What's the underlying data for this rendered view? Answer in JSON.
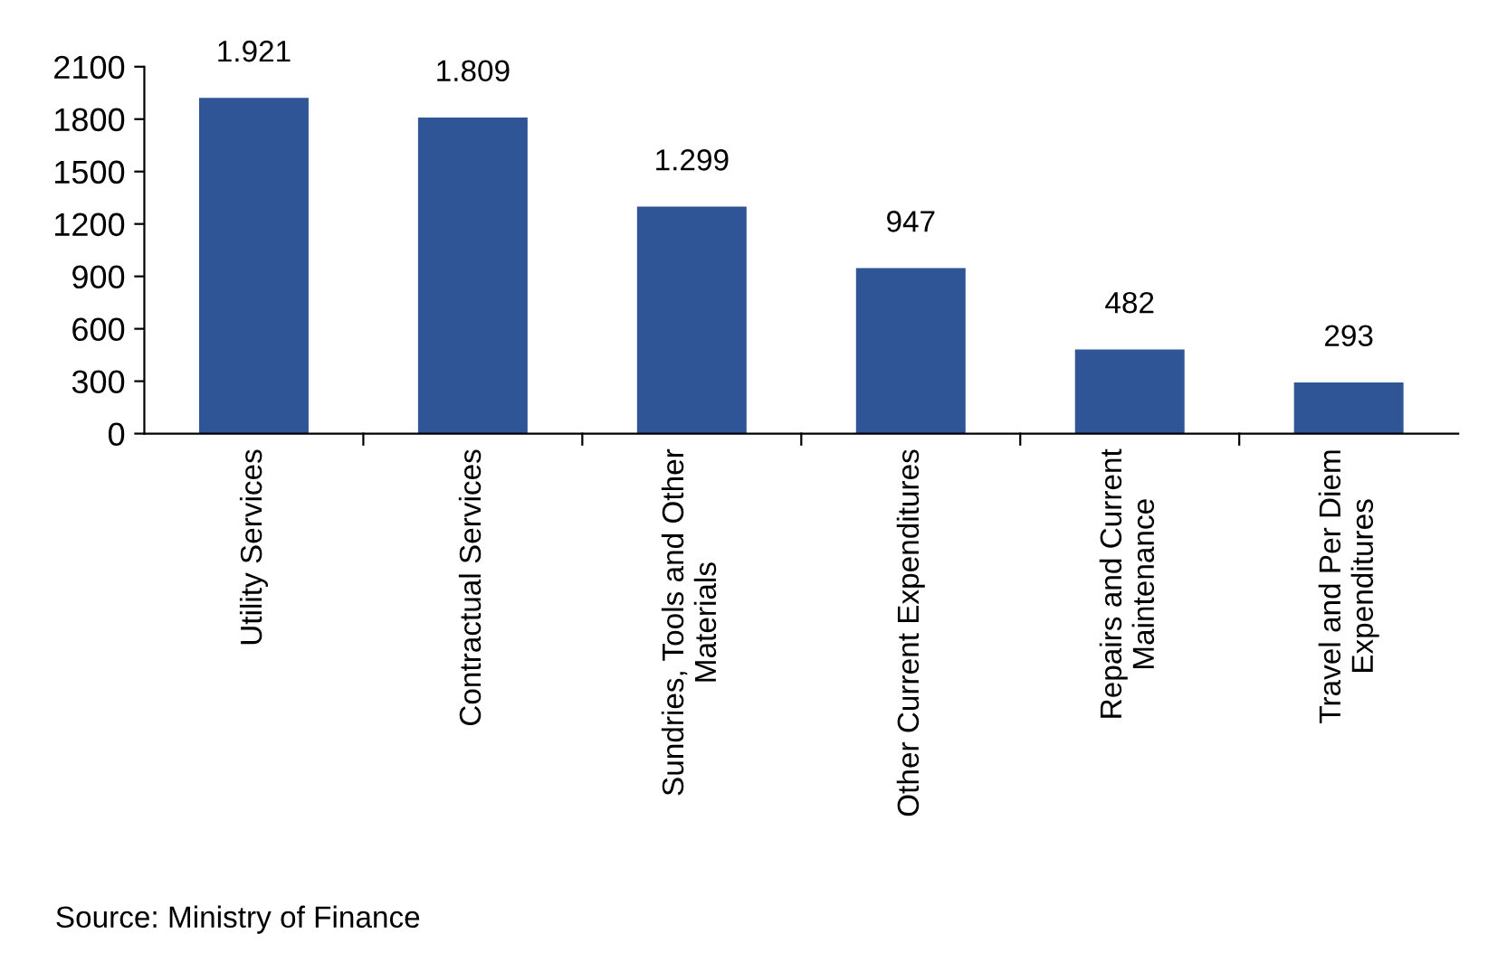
{
  "chart_data": {
    "type": "bar",
    "categories": [
      "Utility Services",
      "Contractual Services",
      "Sundries, Tools and Other\nMaterials",
      "Other Current Expenditures",
      "Repairs and Current\nMaintenance",
      "Travel and Per Diem\nExpenditures"
    ],
    "values": [
      1921,
      1809,
      1299,
      947,
      482,
      293
    ],
    "value_labels": [
      "1.921",
      "1.809",
      "1.299",
      "947",
      "482",
      "293"
    ],
    "color": "#2f5597",
    "ylim": [
      0,
      2100
    ],
    "yticks": [
      0,
      300,
      600,
      900,
      1200,
      1500,
      1800,
      2100
    ],
    "grid": false,
    "annotations": [
      "Source: Ministry of Finance"
    ]
  }
}
